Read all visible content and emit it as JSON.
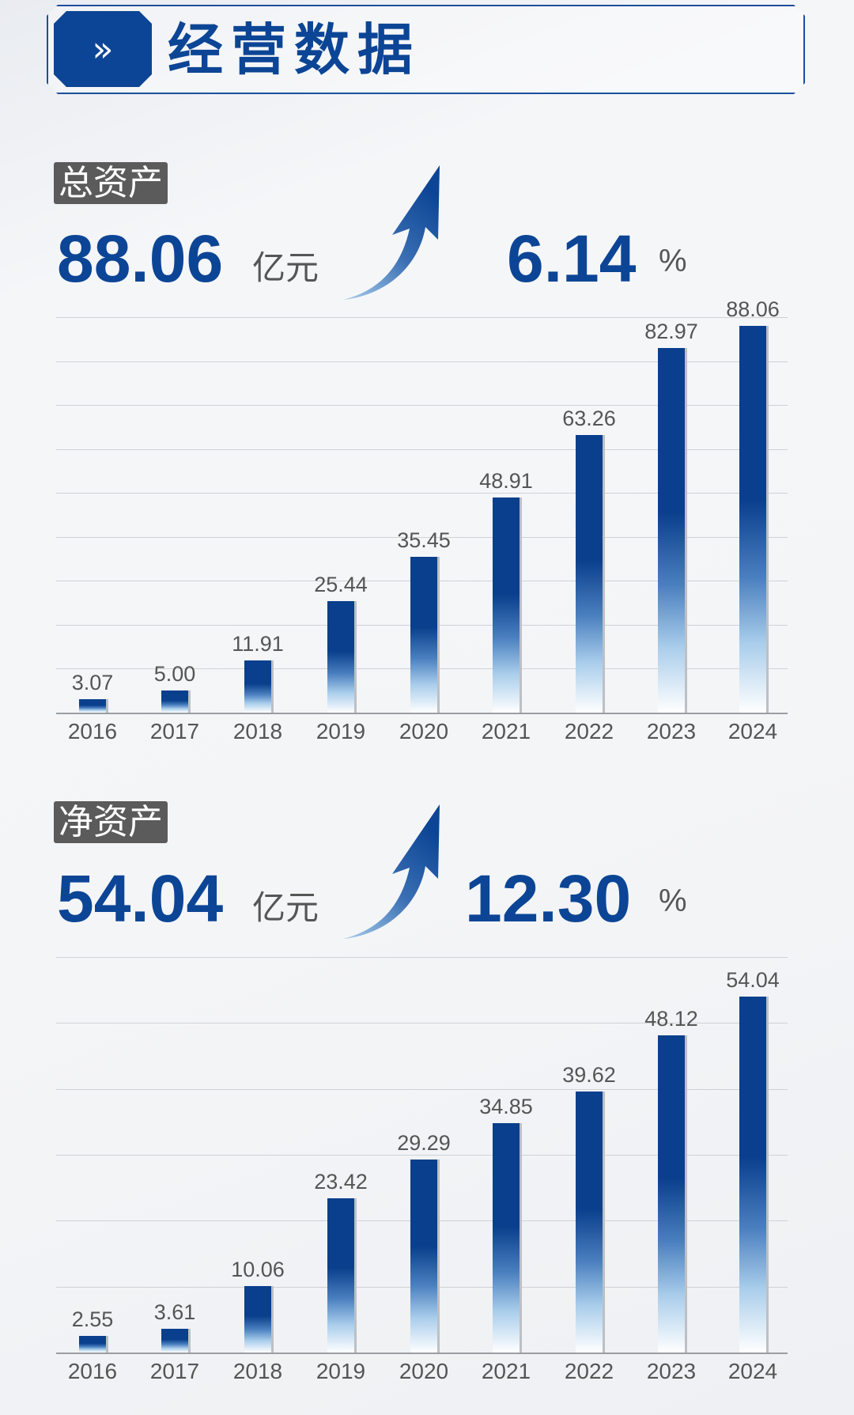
{
  "header": {
    "title": "经营数据",
    "badge_icon": "double-chevron-right-icon",
    "badge_glyph": "»"
  },
  "colors": {
    "accent": "#0c4595",
    "tag": "#5b5b5b"
  },
  "sections": [
    {
      "tag": "总资产",
      "value": "88.06",
      "unit": "亿元",
      "growth": "6.14",
      "growth_unit": "%"
    },
    {
      "tag": "净资产",
      "value": "54.04",
      "unit": "亿元",
      "growth": "12.30",
      "growth_unit": "%"
    }
  ],
  "chart_data": [
    {
      "type": "bar",
      "title": "总资产",
      "categories": [
        "2016",
        "2017",
        "2018",
        "2019",
        "2020",
        "2021",
        "2022",
        "2023",
        "2024"
      ],
      "values": [
        3.07,
        5.0,
        11.91,
        25.44,
        35.45,
        48.91,
        63.26,
        82.97,
        88.06
      ],
      "labels": [
        "3.07",
        "5.00",
        "11.91",
        "25.44",
        "35.45",
        "48.91",
        "63.26",
        "82.97",
        "88.06"
      ],
      "ylim": [
        0,
        90
      ],
      "ystep": 10,
      "grid": true,
      "unit": "亿元"
    },
    {
      "type": "bar",
      "title": "净资产",
      "categories": [
        "2016",
        "2017",
        "2018",
        "2019",
        "2020",
        "2021",
        "2022",
        "2023",
        "2024"
      ],
      "values": [
        2.55,
        3.61,
        10.06,
        23.42,
        29.29,
        34.85,
        39.62,
        48.12,
        54.04
      ],
      "labels": [
        "2.55",
        "3.61",
        "10.06",
        "23.42",
        "29.29",
        "34.85",
        "39.62",
        "48.12",
        "54.04"
      ],
      "ylim": [
        0,
        60
      ],
      "ystep": 10,
      "grid": true,
      "unit": "亿元"
    }
  ]
}
